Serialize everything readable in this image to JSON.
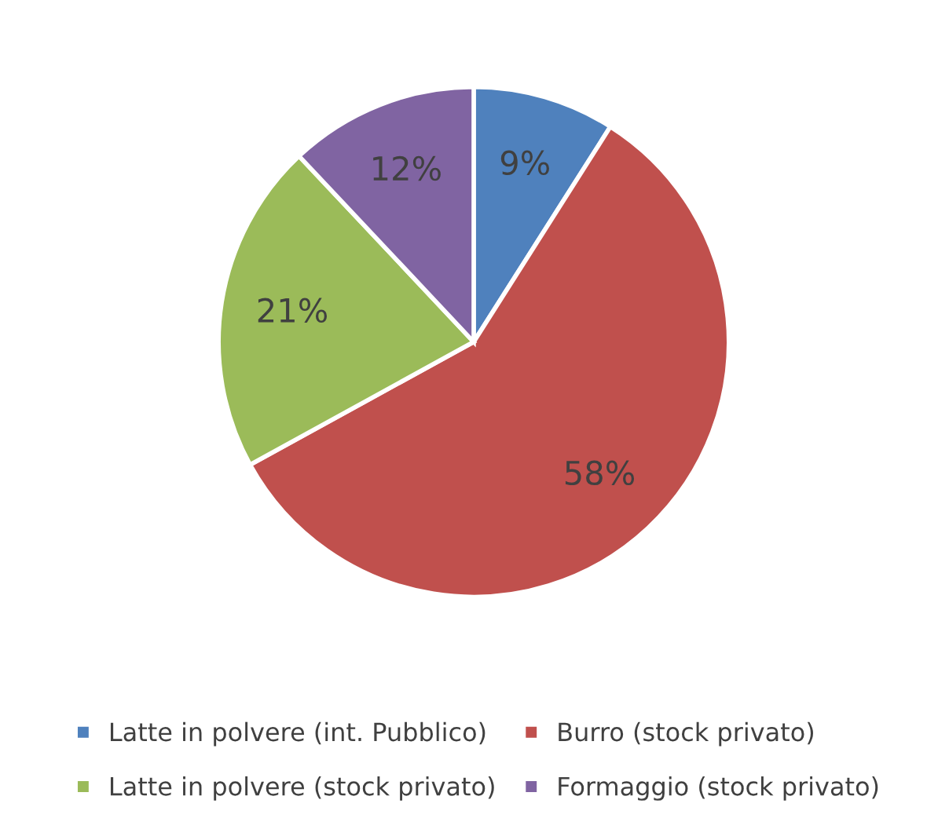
{
  "chart_data": {
    "type": "pie",
    "categories": [
      "Latte in polvere (int. Pubblico)",
      "Burro (stock privato)",
      "Latte in polvere (stock privato)",
      "Formaggio (stock privato)"
    ],
    "values": [
      9,
      58,
      21,
      12
    ],
    "colors": [
      "#4f81bd",
      "#c0504d",
      "#9bbb59",
      "#8064a2"
    ],
    "value_labels": [
      "9%",
      "58%",
      "21%",
      "12%"
    ],
    "legend": "bottom"
  }
}
